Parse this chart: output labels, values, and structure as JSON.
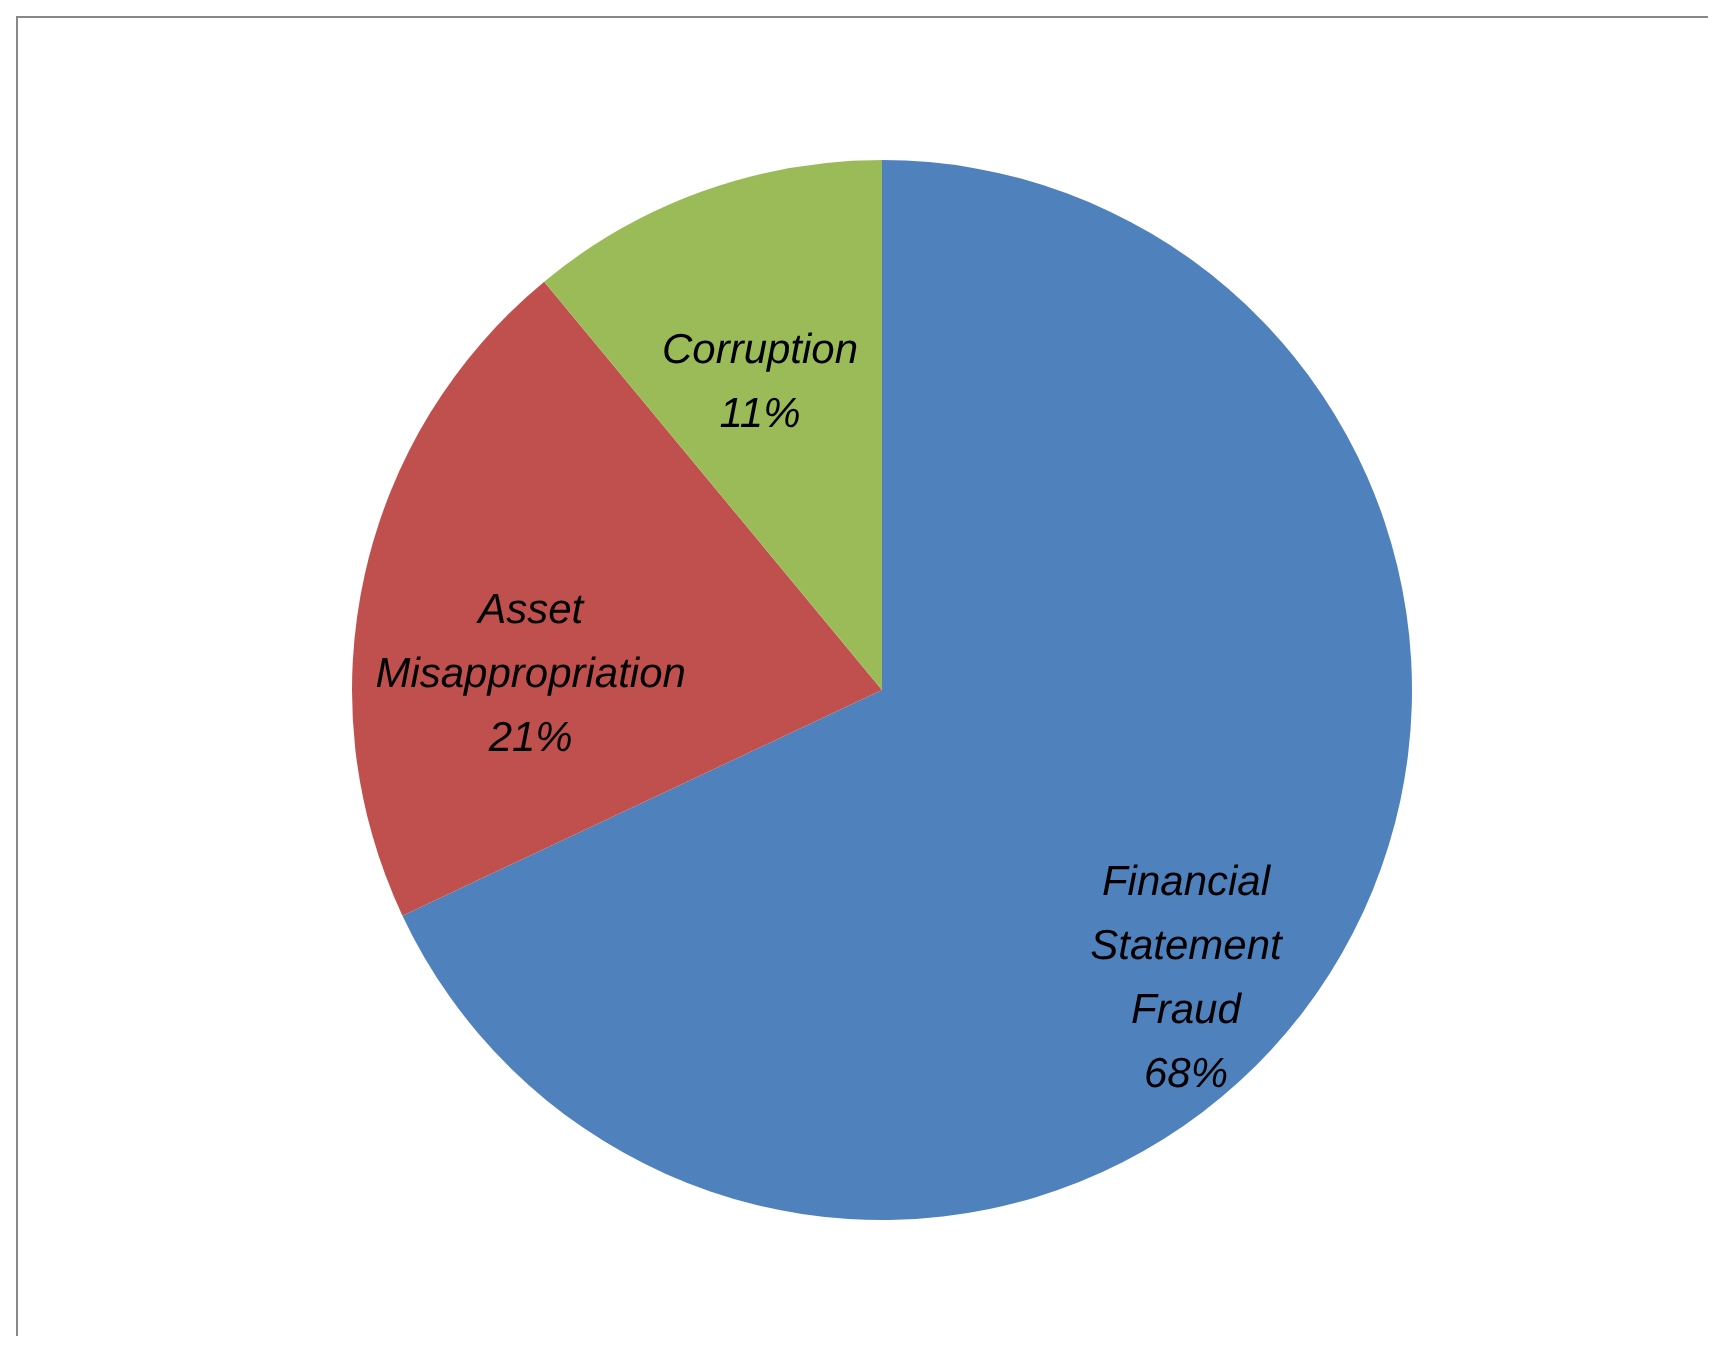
{
  "chart_data": {
    "type": "pie",
    "categories": [
      "Financial Statement Fraud",
      "Asset Misappropriation",
      "Corruption"
    ],
    "values": [
      68,
      21,
      11
    ],
    "colors": [
      "#4f81bd",
      "#c0504d",
      "#9bbb59"
    ],
    "value_labels": [
      "68%",
      "21%",
      "11%"
    ]
  }
}
